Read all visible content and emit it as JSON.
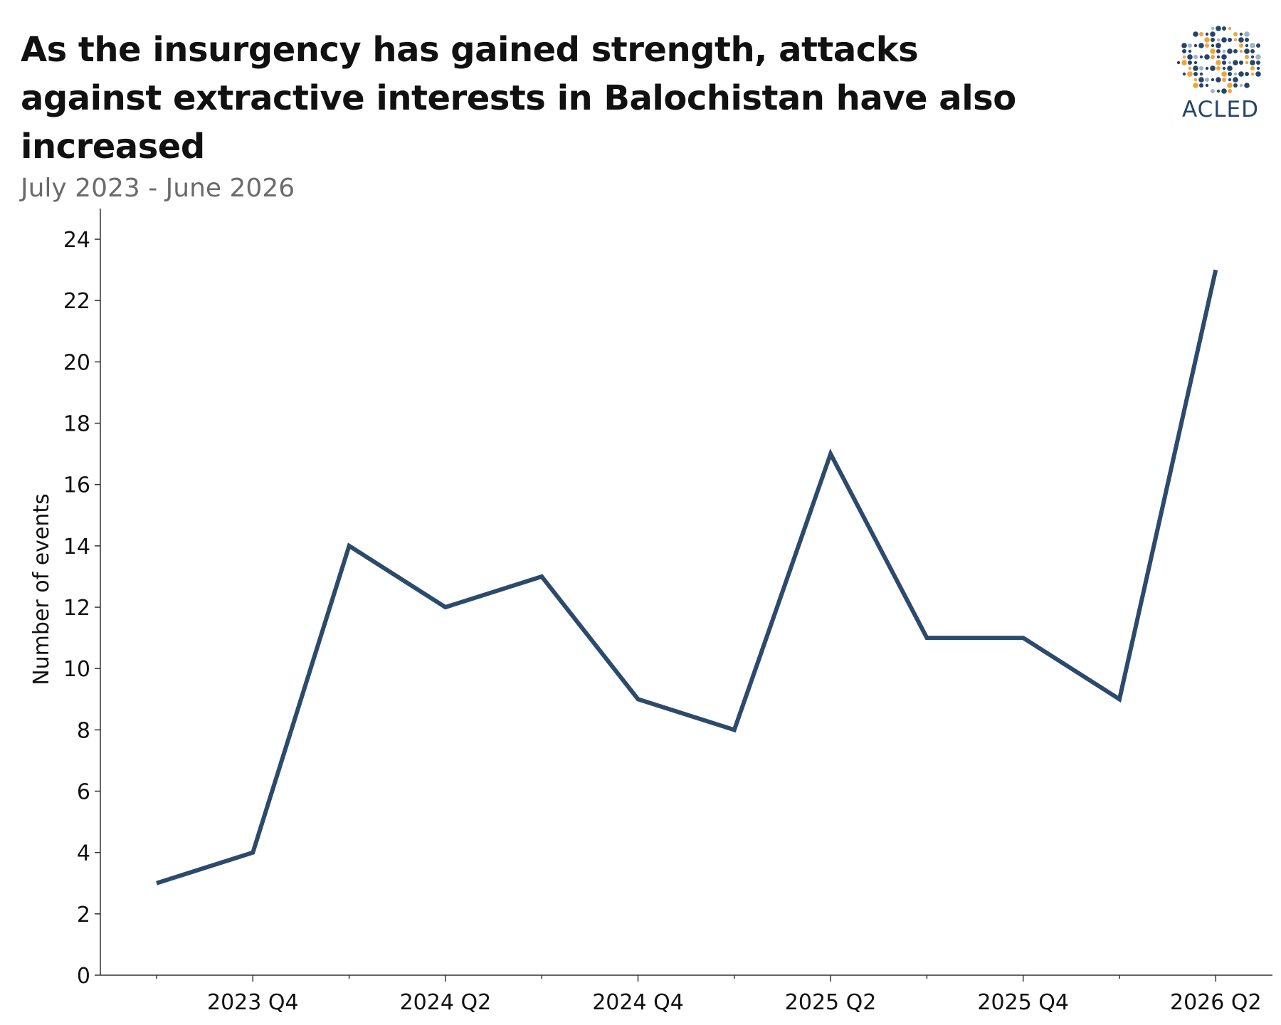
{
  "header": {
    "title": "As the insurgency has gained strength, attacks against extractive interests in Balochistan have also increased",
    "subtitle": "July 2023 - June 2026"
  },
  "logo": {
    "text": "ACLED",
    "icon": "globe-dots-icon",
    "colors": [
      "#25446a",
      "#f2a43a",
      "#9fb3c8"
    ]
  },
  "chart_data": {
    "type": "line",
    "title": "As the insurgency has gained strength, attacks against extractive interests in Balochistan have also increased",
    "subtitle": "July 2023 - June 2026",
    "xlabel": "",
    "ylabel": "Number of events",
    "x": [
      "2023 Q3",
      "2023 Q4",
      "2024 Q1",
      "2024 Q2",
      "2024 Q3",
      "2024 Q4",
      "2025 Q1",
      "2025 Q2",
      "2025 Q3",
      "2025 Q4",
      "2026 Q1",
      "2026 Q2"
    ],
    "x_tick_labels": [
      "2023 Q4",
      "2024 Q2",
      "2024 Q4",
      "2025 Q2",
      "2025 Q4",
      "2026 Q2"
    ],
    "values": [
      3,
      4,
      14,
      12,
      13,
      9,
      8,
      17,
      11,
      11,
      9,
      23
    ],
    "ylim": [
      0,
      25
    ],
    "y_ticks": [
      0,
      2,
      4,
      6,
      8,
      10,
      12,
      14,
      16,
      18,
      20,
      22,
      24
    ],
    "grid": false,
    "legend": "none",
    "line_color": "#2c4a6c"
  }
}
